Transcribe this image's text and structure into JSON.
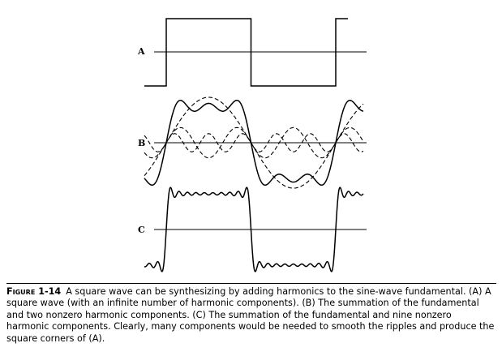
{
  "panels": [
    {
      "label": "A",
      "kind": "square-wave"
    },
    {
      "label": "B",
      "kind": "fundamental-plus-two-harmonics",
      "components_dashed": [
        "fundamental",
        "third-harmonic",
        "fifth-harmonic"
      ]
    },
    {
      "label": "C",
      "kind": "fundamental-plus-nine-harmonics"
    }
  ],
  "caption": {
    "label": "Figure 1-14",
    "text": "A square wave can be synthesizing by adding harmonics to the sine-wave fundamental. (A) A square wave (with an infinite number of harmonic components). (B) The summation of the fundamental and two nonzero harmonic components. (C) The summation of the fundamental and nine nonzero harmonic components. Clearly, many components would be needed  to smooth the ripples and produce the square corners of (A)."
  }
}
